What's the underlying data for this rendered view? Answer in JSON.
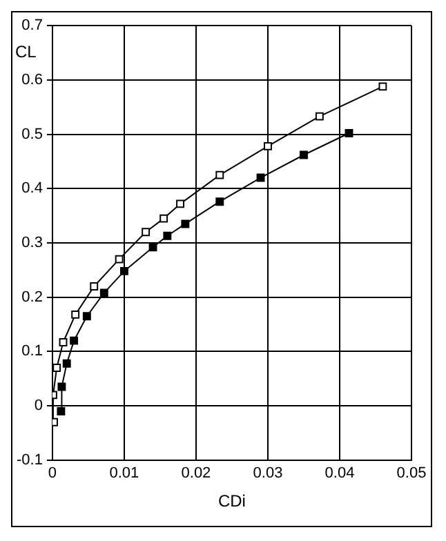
{
  "chart_data": {
    "type": "line",
    "xlabel": "CDi",
    "ylabel": "CL",
    "xlim": [
      0,
      0.05
    ],
    "xticks": [
      0,
      0.01,
      0.02,
      0.03,
      0.04,
      0.05
    ],
    "ylim": [
      -0.1,
      0.7
    ],
    "yticks": [
      -0.1,
      0,
      0.1,
      0.2,
      0.3,
      0.4,
      0.5,
      0.6,
      0.7
    ],
    "grid": true,
    "series": [
      {
        "color": "#000000",
        "marker": "square",
        "x": [
          0.0012,
          0.0013,
          0.002,
          0.003,
          0.0048,
          0.0072,
          0.01,
          0.014,
          0.016,
          0.0185,
          0.0233,
          0.029,
          0.035,
          0.0413
        ],
        "values": [
          -0.01,
          0.035,
          0.078,
          0.12,
          0.165,
          0.208,
          0.248,
          0.292,
          0.313,
          0.335,
          0.376,
          0.42,
          0.462,
          0.502
        ]
      },
      {
        "color": "#000000",
        "marker": "square",
        "x": [
          0.0002,
          0.0001,
          0.0006,
          0.0015,
          0.0032,
          0.0058,
          0.0093,
          0.013,
          0.0155,
          0.0178,
          0.0233,
          0.03,
          0.0372,
          0.046
        ],
        "values": [
          -0.03,
          0.02,
          0.07,
          0.117,
          0.168,
          0.22,
          0.27,
          0.32,
          0.345,
          0.372,
          0.425,
          0.478,
          0.533,
          0.588
        ]
      }
    ]
  }
}
